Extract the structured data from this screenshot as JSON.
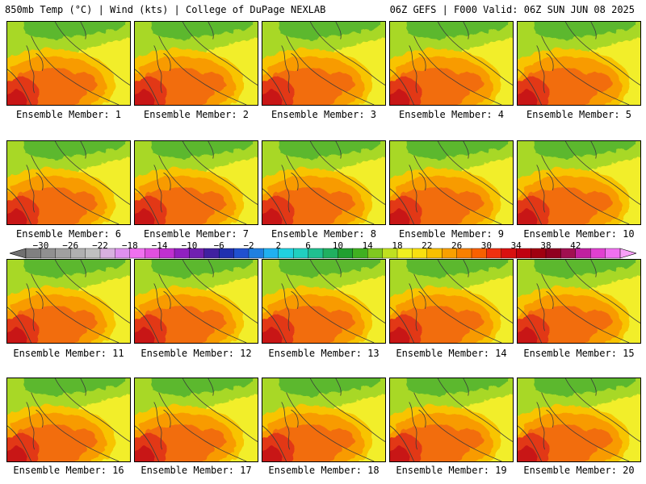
{
  "header": {
    "left": "850mb Temp (°C) | Wind (kts) | College of DuPage NEXLAB",
    "right": "06Z GEFS | F000 Valid: 06Z SUN JUN 08 2025"
  },
  "member_prefix": "Ensemble Member: ",
  "members": [
    "1",
    "2",
    "3",
    "4",
    "5",
    "6",
    "7",
    "8",
    "9",
    "10",
    "11",
    "12",
    "13",
    "14",
    "15",
    "16",
    "17",
    "18",
    "19",
    "20"
  ],
  "colorbar": {
    "tick_labels": [
      "−30",
      "−26",
      "−22",
      "−18",
      "−14",
      "−10",
      "−6",
      "−2",
      "2",
      "6",
      "10",
      "14",
      "18",
      "22",
      "26",
      "30",
      "34",
      "38",
      "42"
    ],
    "tick_values": [
      -30,
      -26,
      -22,
      -18,
      -14,
      -10,
      -6,
      -2,
      2,
      6,
      10,
      14,
      18,
      22,
      26,
      30,
      34,
      38,
      42
    ],
    "min": -32,
    "max": 44,
    "step": 2,
    "colors": [
      "#707070",
      "#808080",
      "#909090",
      "#a0a0a0",
      "#b0b0b0",
      "#c0c0c0",
      "#d8b0e0",
      "#e090f0",
      "#f070f0",
      "#e050e0",
      "#c030d0",
      "#9020c0",
      "#7020b0",
      "#4020a0",
      "#2030b0",
      "#2050d0",
      "#2080e0",
      "#20b0f0",
      "#20d0e0",
      "#20d0c0",
      "#20c090",
      "#20b060",
      "#20a030",
      "#40b020",
      "#80c820",
      "#c0e020",
      "#f0f020",
      "#f8e010",
      "#f8c000",
      "#f8a000",
      "#f88000",
      "#f86000",
      "#f03010",
      "#d81010",
      "#c00010",
      "#a00010",
      "#900020",
      "#a01050",
      "#c020a0",
      "#e040d0",
      "#f070f0",
      "#f8a0f8"
    ]
  },
  "fill_colors": {
    "green": "#5cb82e",
    "light_green": "#a8d825",
    "yellow": "#f2ee2a",
    "gold": "#f8c400",
    "orange": "#f89b00",
    "dark_orange": "#f26d0f",
    "red": "#e23815",
    "dark_red": "#c81218"
  }
}
